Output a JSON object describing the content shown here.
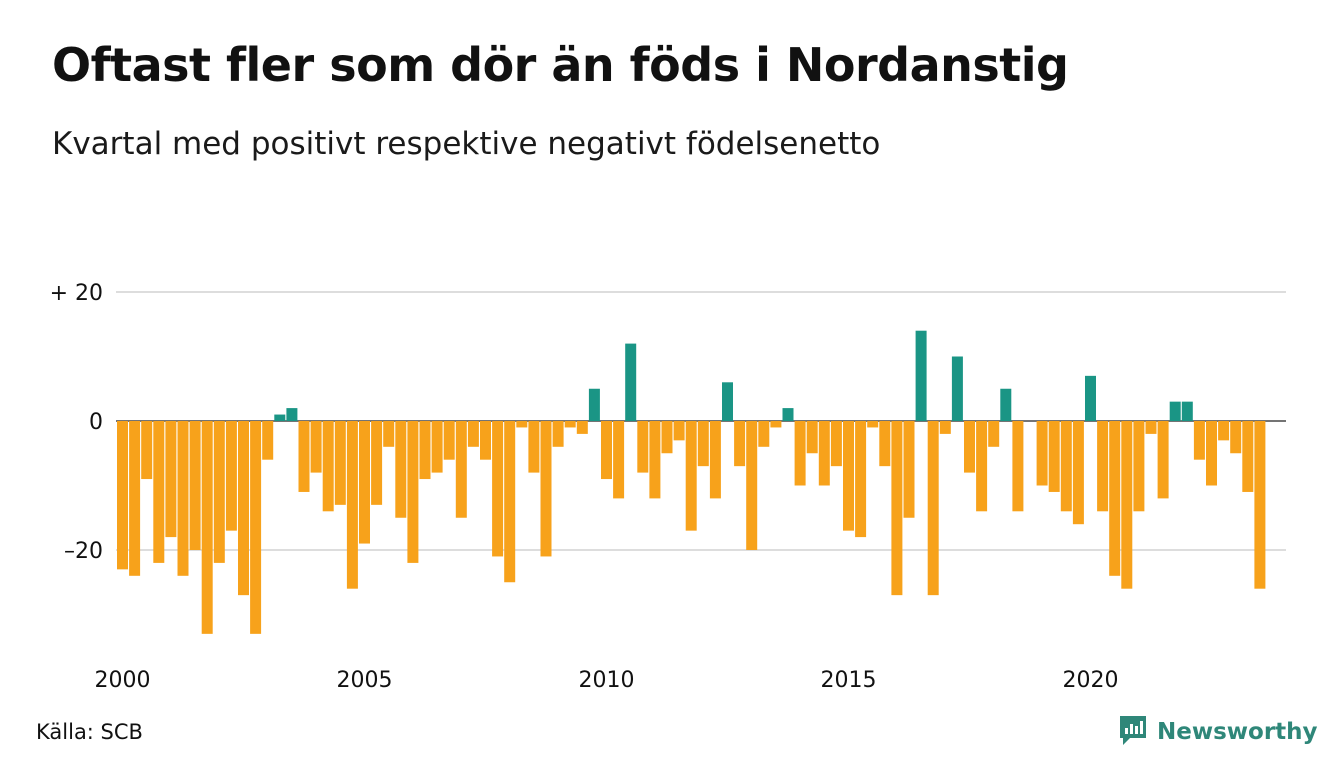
{
  "title": "Oftast fler som dör än föds i Nordanstig",
  "subtitle": "Kvartal med positivt respektive negativt födelsenetto",
  "source": "Källa: SCB",
  "brand": "Newsworthy",
  "colors": {
    "positive": "#1a9585",
    "negative": "#f7a21b",
    "grid": "#dddddd",
    "brand": "#2f8779"
  },
  "chart_data": {
    "type": "bar",
    "x_start": "2000 Q1",
    "ylim": [
      -35,
      22
    ],
    "y_ticks": [
      {
        "value": 20,
        "label": "+ 20"
      },
      {
        "value": 0,
        "label": "0"
      },
      {
        "value": -20,
        "label": "–20"
      }
    ],
    "x_ticks": [
      {
        "year": 2000,
        "label": "2000"
      },
      {
        "year": 2005,
        "label": "2005"
      },
      {
        "year": 2010,
        "label": "2010"
      },
      {
        "year": 2015,
        "label": "2015"
      },
      {
        "year": 2020,
        "label": "2020"
      }
    ],
    "grid": true,
    "values": [
      -23,
      -24,
      -9,
      -22,
      -18,
      -24,
      -20,
      -33,
      -22,
      -17,
      -27,
      -33,
      -6,
      1,
      2,
      -11,
      -8,
      -14,
      -13,
      -26,
      -19,
      -13,
      -4,
      -15,
      -22,
      -9,
      -8,
      -6,
      -15,
      -4,
      -6,
      -21,
      -25,
      -1,
      -8,
      -21,
      -4,
      -1,
      -2,
      5,
      -9,
      -12,
      12,
      -8,
      -12,
      -5,
      -3,
      -17,
      -7,
      -12,
      6,
      -7,
      -20,
      -4,
      -1,
      2,
      -10,
      -5,
      -10,
      -7,
      -17,
      -18,
      -1,
      -7,
      -27,
      -15,
      14,
      -27,
      -2,
      10,
      -8,
      -14,
      -4,
      5,
      -14,
      0,
      -10,
      -11,
      -14,
      -16,
      7,
      -14,
      -24,
      -26,
      -14,
      -2,
      -12,
      3,
      3,
      -6,
      -10,
      -3,
      -5,
      -11,
      -26
    ]
  }
}
